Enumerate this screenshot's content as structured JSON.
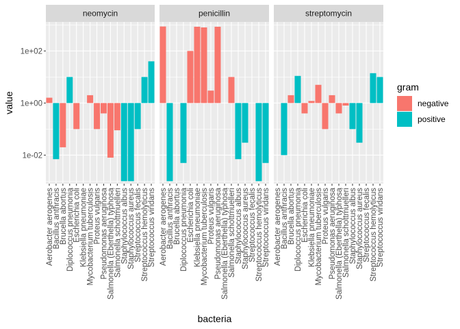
{
  "chart_data": {
    "type": "bar",
    "xlabel": "bacteria",
    "ylabel": "value",
    "y_scale": "log10",
    "ylim": [
      0.0008,
      1300
    ],
    "y_ticks": [
      0.01,
      1,
      100
    ],
    "y_tick_labels": [
      "1e-02",
      "1e+00",
      "1e+02"
    ],
    "baseline": 1,
    "categories": [
      "Aerobacter aerogenes",
      "Bacillus anthracis",
      "Brucella abortus",
      "Diplococcus pneumonia",
      "Escherichia coli",
      "Klebsiella pneumoniae",
      "Mycobacterium tuberculosis",
      "Proteus vulgaris",
      "Pseudomonas aeruginosa",
      "Salmonella (Eberthella) typhosa",
      "Salmonella schottmuelleri",
      "Staphylococcus albus",
      "Staphylococcus aureus",
      "Streptococcus fecalis",
      "Streptococcus hemolyticus",
      "Streptococcus viridans"
    ],
    "gram": [
      "negative",
      "positive",
      "negative",
      "positive",
      "negative",
      "negative",
      "negative",
      "negative",
      "negative",
      "negative",
      "negative",
      "positive",
      "positive",
      "positive",
      "positive",
      "positive"
    ],
    "facets": [
      {
        "name": "neomycin",
        "values": [
          1.6,
          0.007,
          0.02,
          10,
          0.1,
          1,
          2,
          0.1,
          0.4,
          0.008,
          0.09,
          0.001,
          0.001,
          0.1,
          10,
          40
        ]
      },
      {
        "name": "penicillin",
        "values": [
          870,
          0.001,
          1,
          0.005,
          100,
          850,
          800,
          3,
          850,
          1,
          10,
          0.007,
          0.03,
          1,
          0.001,
          0.005
        ]
      },
      {
        "name": "streptomycin",
        "values": [
          1,
          0.01,
          2,
          11,
          0.4,
          1.2,
          5,
          0.1,
          2,
          0.4,
          0.8,
          0.1,
          0.03,
          1,
          14,
          10
        ]
      }
    ],
    "legend": {
      "title": "gram",
      "position": "right",
      "items": [
        {
          "label": "negative",
          "color": "#F8766D"
        },
        {
          "label": "positive",
          "color": "#00BFC4"
        }
      ]
    },
    "grid": true,
    "colors": {
      "panel_bg": "#EBEBEB",
      "grid_major": "#FFFFFF",
      "strip_bg": "#D9D9D9",
      "negative": "#F8766D",
      "positive": "#00BFC4"
    }
  }
}
